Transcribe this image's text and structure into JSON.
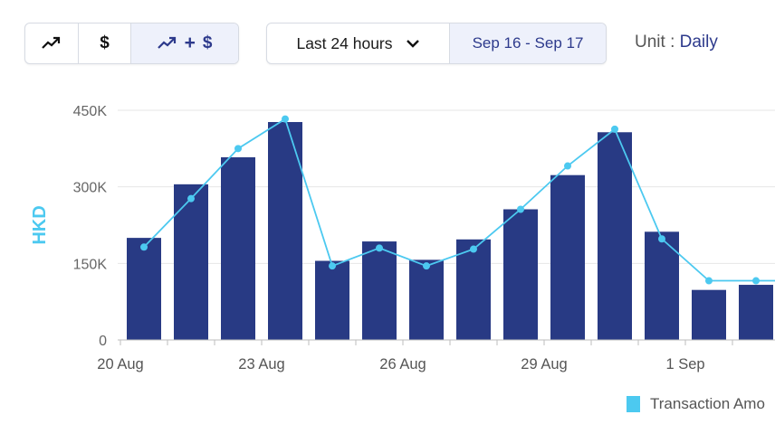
{
  "toolbar": {
    "view_buttons": [
      {
        "name": "trend-view-button",
        "icon": "trend-icon"
      },
      {
        "name": "amount-view-button",
        "icon": "dollar-icon",
        "label": "$"
      },
      {
        "name": "combined-view-button",
        "icon": "trend-icon",
        "plus": "+",
        "label": "$",
        "selected": true
      }
    ],
    "period_label": "Last 24 hours",
    "period_icon": "chevron-down-icon",
    "date_range": "Sep 16 - Sep 17",
    "unit_prefix": "Unit :",
    "unit_value": "Daily"
  },
  "colors": {
    "bar": "#283a84",
    "line": "#4cc9f0",
    "axis_title": "#4cc9f0",
    "selected_bg": "#eef1fb",
    "accent_text": "#2d3a8c"
  },
  "chart_data": {
    "type": "bar",
    "ylabel": "HKD",
    "ylim": [
      0,
      450000
    ],
    "yticks": [
      0,
      150000,
      300000,
      450000
    ],
    "ytick_labels": [
      "0",
      "150K",
      "300K",
      "450K"
    ],
    "x_tick_labels": [
      "20 Aug",
      "23 Aug",
      "26 Aug",
      "29 Aug",
      "1 Sep"
    ],
    "x_tick_positions": [
      "20 Aug",
      "23 Aug",
      "26 Aug",
      "29 Aug",
      "1 Sep"
    ],
    "categories": [
      "20 Aug",
      "21 Aug",
      "22 Aug",
      "23 Aug",
      "24 Aug",
      "25 Aug",
      "26 Aug",
      "27 Aug",
      "28 Aug",
      "29 Aug",
      "30 Aug",
      "31 Aug",
      "1 Sep",
      "2 Sep"
    ],
    "series": [
      {
        "name": "Transaction Amount",
        "kind": "bar",
        "values": [
          200000,
          305000,
          358000,
          427000,
          155000,
          193000,
          157000,
          197000,
          256000,
          323000,
          407000,
          212000,
          98000,
          108000
        ]
      },
      {
        "kind": "line",
        "values": [
          182000,
          277000,
          375000,
          433000,
          145000,
          180000,
          145000,
          178000,
          256000,
          341000,
          413000,
          198000,
          116000,
          116000
        ]
      }
    ],
    "legend": {
      "label": "Transaction Amo",
      "position": "bottom-right"
    },
    "grid": true
  }
}
